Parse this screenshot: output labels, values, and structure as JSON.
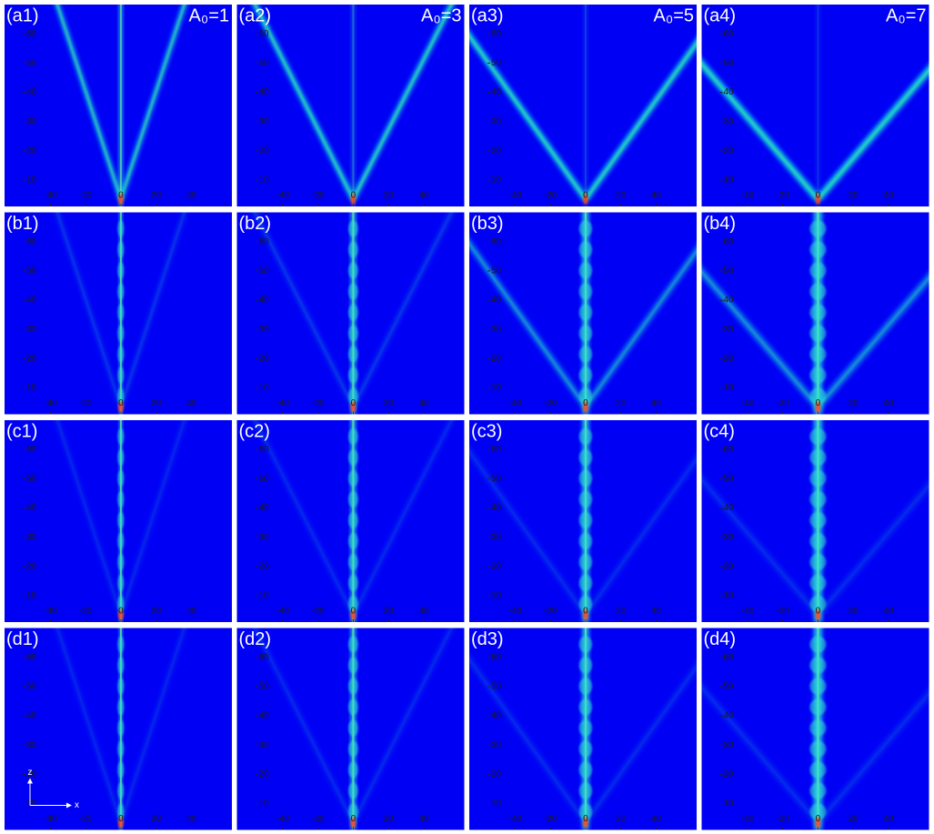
{
  "chart_data": [
    {
      "type": "heatmap",
      "label": "(a1)",
      "annotation": "A₀=1",
      "xlim": [
        -66,
        63
      ],
      "ylim": [
        1,
        70
      ],
      "xticks": [
        -40,
        -20,
        0,
        20,
        40
      ],
      "yticks": [
        10,
        20,
        30,
        40,
        50,
        60
      ]
    },
    {
      "type": "heatmap",
      "label": "(a2)",
      "annotation": "A₀=3",
      "xlim": [
        -66,
        63
      ],
      "ylim": [
        1,
        70
      ],
      "xticks": [
        -40,
        -20,
        0,
        20,
        40
      ],
      "yticks": [
        10,
        20,
        30,
        40,
        50,
        60
      ]
    },
    {
      "type": "heatmap",
      "label": "(a3)",
      "annotation": "A₀=5",
      "xlim": [
        -66,
        63
      ],
      "ylim": [
        1,
        70
      ],
      "xticks": [
        -40,
        -20,
        0,
        20,
        40
      ],
      "yticks": [
        10,
        20,
        30,
        40,
        50,
        60
      ]
    },
    {
      "type": "heatmap",
      "label": "(a4)",
      "annotation": "A₀=7",
      "xlim": [
        -66,
        63
      ],
      "ylim": [
        1,
        70
      ],
      "xticks": [
        -40,
        -20,
        0,
        20,
        40
      ],
      "yticks": [
        10,
        20,
        30,
        40,
        50,
        60
      ]
    },
    {
      "type": "heatmap",
      "label": "(b1)",
      "xlim": [
        -66,
        63
      ],
      "ylim": [
        1,
        70
      ],
      "xticks": [
        -40,
        -20,
        0,
        20,
        40
      ],
      "yticks": [
        10,
        20,
        30,
        40,
        50,
        60
      ]
    },
    {
      "type": "heatmap",
      "label": "(b2)",
      "xlim": [
        -66,
        63
      ],
      "ylim": [
        1,
        70
      ],
      "xticks": [
        -40,
        -20,
        0,
        20,
        40
      ],
      "yticks": [
        10,
        20,
        30,
        40,
        50,
        60
      ]
    },
    {
      "type": "heatmap",
      "label": "(b3)",
      "xlim": [
        -66,
        63
      ],
      "ylim": [
        1,
        70
      ],
      "xticks": [
        -40,
        -20,
        0,
        20,
        40
      ],
      "yticks": [
        10,
        20,
        30,
        40,
        50,
        60
      ]
    },
    {
      "type": "heatmap",
      "label": "(b4)",
      "xlim": [
        -66,
        63
      ],
      "ylim": [
        1,
        70
      ],
      "xticks": [
        -40,
        -20,
        0,
        20,
        40
      ],
      "yticks": [
        10,
        20,
        30,
        40,
        50,
        60
      ]
    },
    {
      "type": "heatmap",
      "label": "(c1)",
      "xlim": [
        -66,
        63
      ],
      "ylim": [
        1,
        70
      ],
      "xticks": [
        -40,
        -20,
        0,
        20,
        40
      ],
      "yticks": [
        10,
        20,
        30,
        40,
        50,
        60
      ]
    },
    {
      "type": "heatmap",
      "label": "(c2)",
      "xlim": [
        -66,
        63
      ],
      "ylim": [
        1,
        70
      ],
      "xticks": [
        -40,
        -20,
        0,
        20,
        40
      ],
      "yticks": [
        10,
        20,
        30,
        40,
        50,
        60
      ]
    },
    {
      "type": "heatmap",
      "label": "(c3)",
      "xlim": [
        -66,
        63
      ],
      "ylim": [
        1,
        70
      ],
      "xticks": [
        -40,
        -20,
        0,
        20,
        40
      ],
      "yticks": [
        10,
        20,
        30,
        40,
        50,
        60
      ]
    },
    {
      "type": "heatmap",
      "label": "(c4)",
      "xlim": [
        -66,
        63
      ],
      "ylim": [
        1,
        70
      ],
      "xticks": [
        -40,
        -20,
        0,
        20,
        40
      ],
      "yticks": [
        10,
        20,
        30,
        40,
        50,
        60
      ]
    },
    {
      "type": "heatmap",
      "label": "(d1)",
      "xlabel": "x",
      "ylabel": "z",
      "xlim": [
        -66,
        63
      ],
      "ylim": [
        1,
        70
      ],
      "xticks": [
        -40,
        -20,
        0,
        20,
        40
      ],
      "yticks": [
        10,
        20,
        30,
        40,
        50,
        60
      ]
    },
    {
      "type": "heatmap",
      "label": "(d2)",
      "xlim": [
        -66,
        63
      ],
      "ylim": [
        1,
        70
      ],
      "xticks": [
        -40,
        -20,
        0,
        20,
        40
      ],
      "yticks": [
        10,
        20,
        30,
        40,
        50,
        60
      ]
    },
    {
      "type": "heatmap",
      "label": "(d3)",
      "xlim": [
        -66,
        63
      ],
      "ylim": [
        1,
        70
      ],
      "xticks": [
        -40,
        -20,
        0,
        20,
        40
      ],
      "yticks": [
        10,
        20,
        30,
        40,
        50,
        60
      ]
    },
    {
      "type": "heatmap",
      "label": "(d4)",
      "xlim": [
        -66,
        63
      ],
      "ylim": [
        1,
        70
      ],
      "xticks": [
        -40,
        -20,
        0,
        20,
        40
      ],
      "yticks": [
        10,
        20,
        30,
        40,
        50,
        60
      ]
    }
  ]
}
